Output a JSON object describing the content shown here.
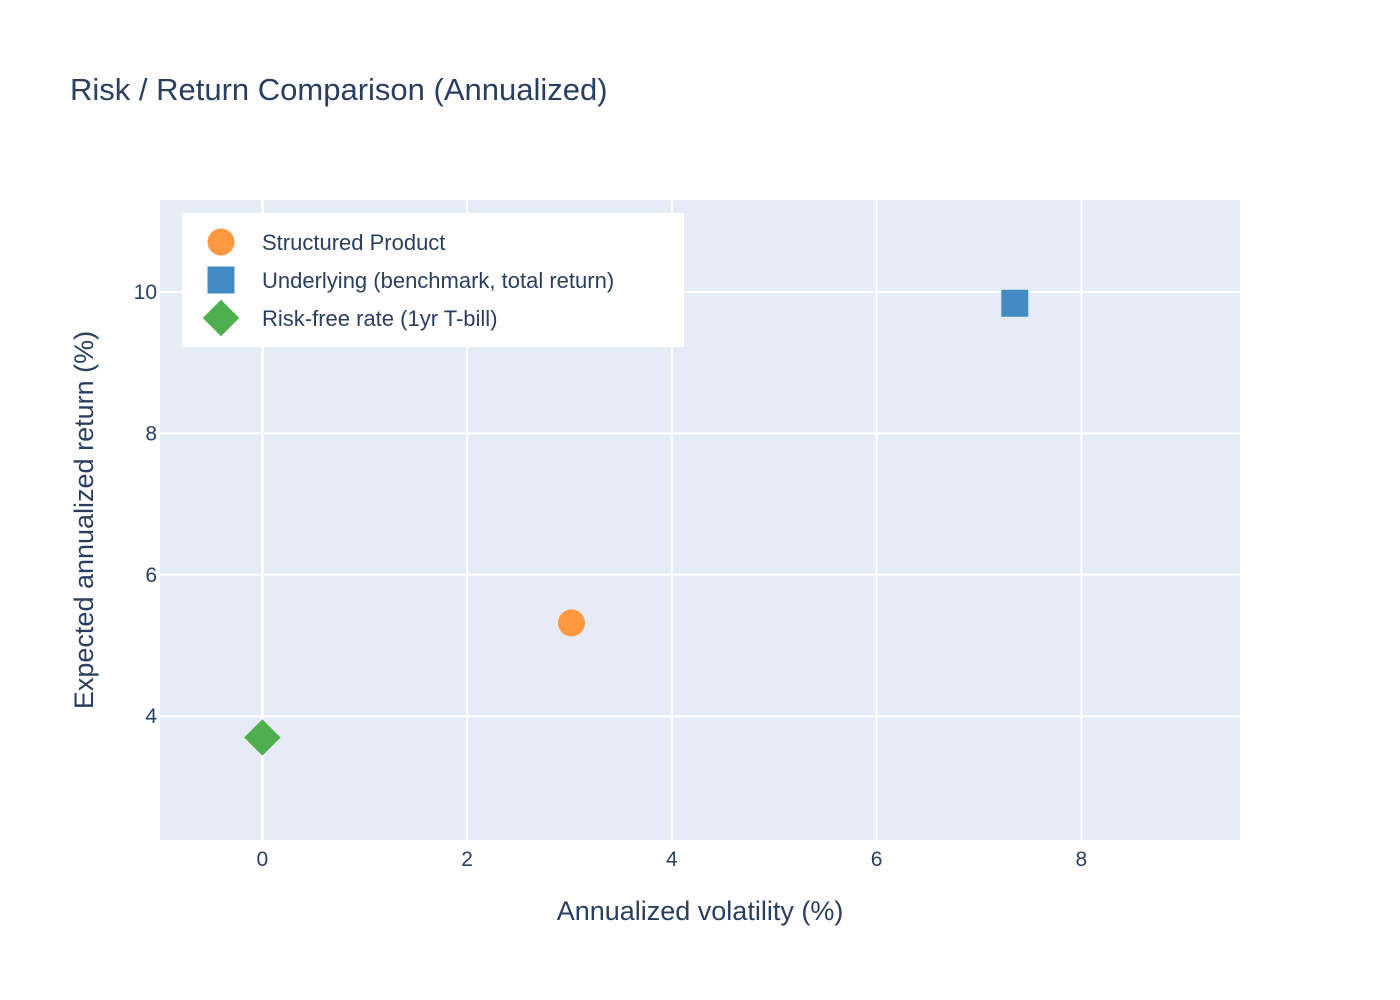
{
  "chart_data": {
    "type": "scatter",
    "title": "Risk / Return Comparison (Annualized)",
    "xlabel": "Annualized volatility (%)",
    "ylabel": "Expected annualized return (%)",
    "xlim": [
      -1.0,
      9.55
    ],
    "ylim": [
      2.25,
      11.3
    ],
    "x_ticks": [
      0,
      2,
      4,
      6,
      8
    ],
    "y_ticks": [
      4,
      6,
      8,
      10
    ],
    "grid": true,
    "legend_position": "top-left",
    "plot_background": "#e5ecf6",
    "series": [
      {
        "name": "Structured Product",
        "x": 3.02,
        "y": 5.32,
        "marker": "circle",
        "color": "#ff9840"
      },
      {
        "name": "Underlying (benchmark, total return)",
        "x": 7.35,
        "y": 9.84,
        "marker": "square",
        "color": "#428bc4"
      },
      {
        "name": "Risk-free rate (1yr T-bill)",
        "x": 0.0,
        "y": 3.7,
        "marker": "diamond",
        "color": "#4faf4f"
      }
    ]
  }
}
